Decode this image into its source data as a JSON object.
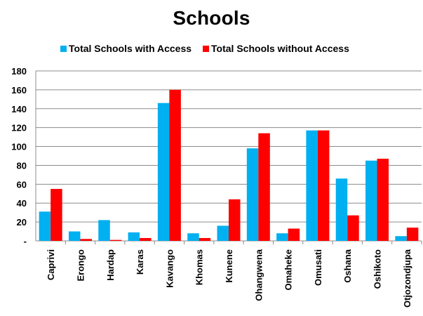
{
  "chart_data": {
    "type": "bar",
    "title": "Schools",
    "xlabel": "",
    "ylabel": "",
    "ylim": [
      0,
      180
    ],
    "yticks": [
      0,
      20,
      40,
      60,
      80,
      100,
      120,
      140,
      160,
      180
    ],
    "ytick_labels": [
      "-",
      "20",
      "40",
      "60",
      "80",
      "100",
      "120",
      "140",
      "160",
      "180"
    ],
    "grid": true,
    "legend_position": "top",
    "categories": [
      "Caprivi",
      "Erongo",
      "Hardap",
      "Karas",
      "Kavango",
      "Khomas",
      "Kunene",
      "Ohangwena",
      "Omaheke",
      "Omusati",
      "Oshana",
      "Oshikoto",
      "Otjozondjupa"
    ],
    "series": [
      {
        "name": "Total Schools with Access",
        "color": "#00b0f0",
        "values": [
          31,
          10,
          22,
          9,
          146,
          8,
          16,
          98,
          8,
          117,
          66,
          85,
          5
        ]
      },
      {
        "name": "Total Schools without Access",
        "color": "#ff0000",
        "values": [
          55,
          2,
          1,
          3,
          160,
          3,
          44,
          114,
          13,
          117,
          27,
          87,
          14
        ]
      }
    ]
  }
}
